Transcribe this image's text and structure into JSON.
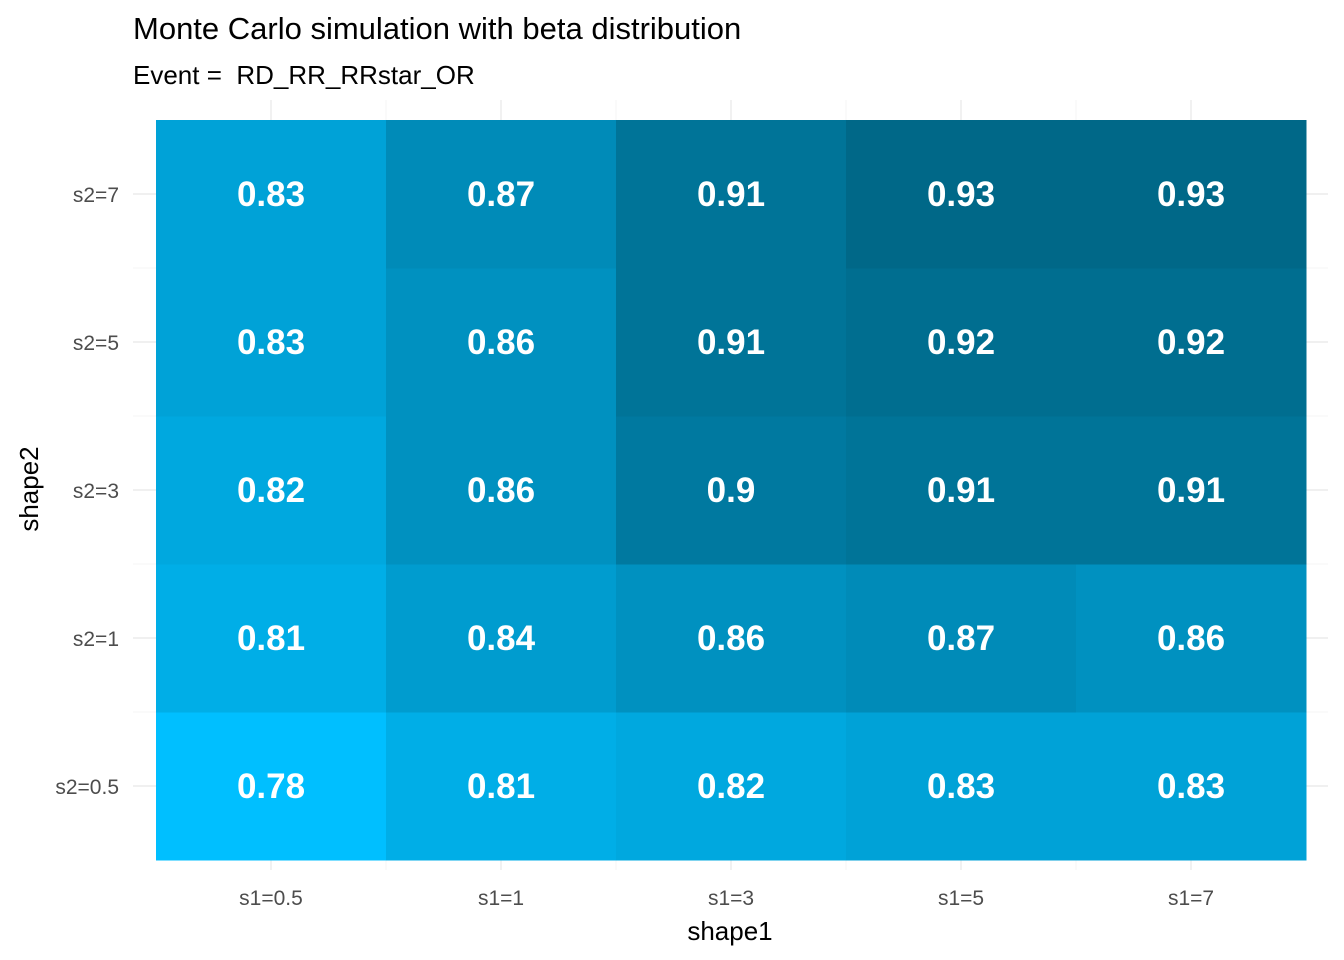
{
  "chart_data": {
    "type": "heatmap",
    "title": "Monte Carlo simulation with beta distribution",
    "subtitle": "Event =  RD_RR_RRstar_OR",
    "xlabel": "shape1",
    "ylabel": "shape2",
    "x_categories": [
      "s1=0.5",
      "s1=1",
      "s1=3",
      "s1=5",
      "s1=7"
    ],
    "y_categories": [
      "s2=0.5",
      "s2=1",
      "s2=3",
      "s2=5",
      "s2=7"
    ],
    "values": [
      [
        0.78,
        0.81,
        0.82,
        0.83,
        0.83
      ],
      [
        0.81,
        0.84,
        0.86,
        0.87,
        0.86
      ],
      [
        0.82,
        0.86,
        0.9,
        0.91,
        0.91
      ],
      [
        0.83,
        0.86,
        0.91,
        0.92,
        0.92
      ],
      [
        0.83,
        0.87,
        0.91,
        0.93,
        0.93
      ]
    ],
    "value_labels": [
      [
        "0.78",
        "0.81",
        "0.82",
        "0.83",
        "0.83"
      ],
      [
        "0.81",
        "0.84",
        "0.86",
        "0.87",
        "0.86"
      ],
      [
        "0.82",
        "0.86",
        "0.9",
        "0.91",
        "0.91"
      ],
      [
        "0.83",
        "0.86",
        "0.91",
        "0.92",
        "0.92"
      ],
      [
        "0.83",
        "0.87",
        "0.91",
        "0.93",
        "0.93"
      ]
    ],
    "color_low": "#00bfff",
    "color_high": "#006888",
    "label_color": "#ffffff",
    "grid": true,
    "legend": "none"
  }
}
